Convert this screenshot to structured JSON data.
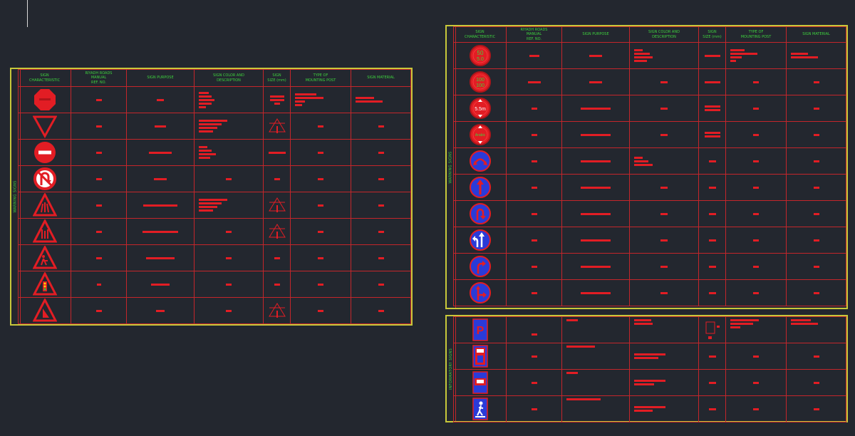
{
  "panels": {
    "warning_left": {
      "side_label": "WARNING SIGNS",
      "headers": [
        "SIGN\nCHARACTERISTIC",
        "RIYADH ROADS\nMANUAL\nREF. NO.",
        "SIGN PURPOSE",
        "SIGN COLOR AND\nDESCRIPTION",
        "SIGN\nSIZE (mm)",
        "TYPE OF\nMOUNTING POST",
        "SIGN MATERIAL"
      ]
    },
    "warning_right": {
      "side_label": "WARNING SIGNS",
      "headers": [
        "SIGN\nCHARACTERISTIC",
        "RIYADH ROADS\nMANUAL\nREF. NO.",
        "SIGN PURPOSE",
        "SIGN COLOR AND\nDESCRIPTION",
        "SIGN\nSIZE (mm)",
        "TYPE OF\nMOUNTING POST",
        "SIGN MATERIAL"
      ]
    },
    "informatory": {
      "side_label": "INFORMATORY SIGNS"
    }
  },
  "signs": {
    "speed_50": "50",
    "speed_50_sub": "5.0",
    "speed_100": "100",
    "speed_100_sub": "100",
    "height_limit": "5.5m",
    "arabic_text": "Arabic",
    "parking_letter": "P"
  },
  "icons": [
    "stop-sign-icon",
    "yield-sign-icon",
    "no-entry-sign-icon",
    "no-u-turn-sign-icon",
    "road-narrows-sign-icon",
    "speed-limit-sign-icon",
    "height-limit-sign-icon",
    "roundabout-sign-icon",
    "ahead-only-sign-icon",
    "u-turn-sign-icon",
    "keep-left-sign-icon",
    "turn-right-sign-icon",
    "fork-sign-icon",
    "parking-sign-icon",
    "pedestrian-sign-icon"
  ],
  "colors": {
    "background": "#23272f",
    "frame": "#c8c83a",
    "grid": "#c4262b",
    "header_text": "#3ed13e",
    "sign_red": "#e21d24",
    "sign_blue": "#2a3bd8"
  }
}
